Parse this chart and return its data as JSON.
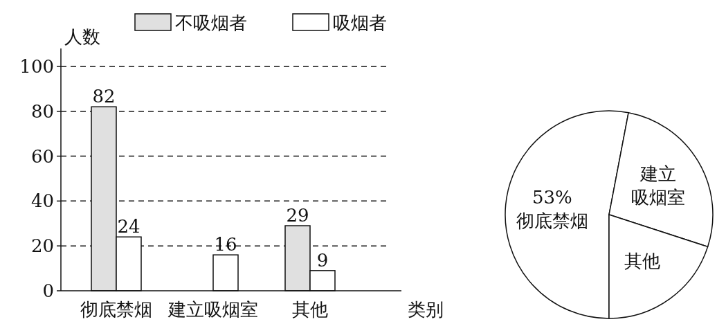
{
  "chart_data": [
    {
      "type": "bar",
      "ylabel": "人数",
      "xlabel": "类别",
      "categories": [
        "彻底禁烟",
        "建立吸烟室",
        "其他"
      ],
      "series": [
        {
          "name": "不吸烟者",
          "color": "#e0e0e0",
          "values": [
            82,
            null,
            29
          ]
        },
        {
          "name": "吸烟者",
          "color": "#ffffff",
          "values": [
            24,
            16,
            9
          ]
        }
      ],
      "ylim": [
        0,
        108
      ],
      "yticks": [
        0,
        20,
        40,
        60,
        80,
        100
      ],
      "grid": "y",
      "line_style": "dashed",
      "legend": "top",
      "data_labels": true
    },
    {
      "type": "pie",
      "categories": [
        "彻底禁烟",
        "建立吸烟室",
        "其他"
      ],
      "values": [
        53,
        27,
        20
      ],
      "colors": [
        "#ffffff",
        "#ffffff",
        "#ffffff"
      ],
      "value_labels": [
        "53%",
        null,
        null
      ]
    }
  ]
}
